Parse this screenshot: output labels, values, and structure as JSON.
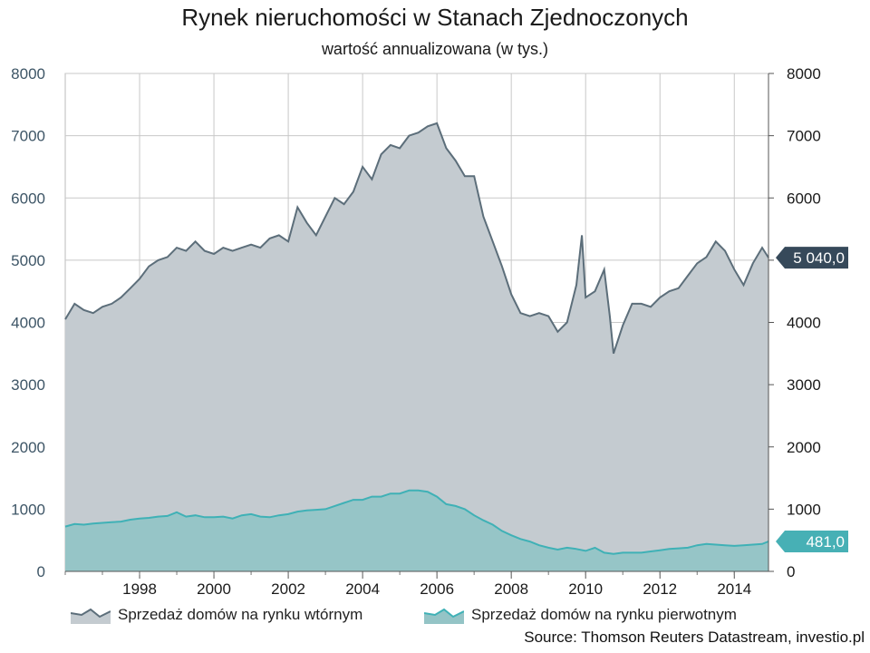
{
  "title": "Rynek nieruchomości w Stanach Zjednoczonych",
  "subtitle": "wartość annualizowana (w tys.)",
  "source": "Source: Thomson Reuters Datastream, investio.pl",
  "colors": {
    "existing_fill": "#c4cbd0",
    "existing_line": "#5c6e7a",
    "new_fill": "#94c4c6",
    "new_line": "#3fb1b6",
    "existing_badge": "#36495a",
    "new_badge": "#47b0b5",
    "grid": "#c8c8c8"
  },
  "chart_data": {
    "type": "area",
    "title": "Rynek nieruchomości w Stanach Zjednoczonych",
    "subtitle": "wartość annualizowana (w tys.)",
    "x_range": [
      1996.0,
      2014.92
    ],
    "x_ticks": [
      "1998",
      "2000",
      "2002",
      "2004",
      "2006",
      "2008",
      "2010",
      "2012",
      "2014"
    ],
    "ylim": [
      0,
      8000
    ],
    "y_ticks": [
      "0",
      "1000",
      "2000",
      "3000",
      "4000",
      "5000",
      "6000",
      "7000",
      "8000"
    ],
    "grid": true,
    "legend_position": "bottom",
    "series": [
      {
        "name": "Sprzedaż domów na rynku wtórnym",
        "last_value_label": "5 040,0",
        "x": [
          1996.0,
          1996.25,
          1996.5,
          1996.75,
          1997.0,
          1997.25,
          1997.5,
          1997.75,
          1998.0,
          1998.25,
          1998.5,
          1998.75,
          1999.0,
          1999.25,
          1999.5,
          1999.75,
          2000.0,
          2000.25,
          2000.5,
          2000.75,
          2001.0,
          2001.25,
          2001.5,
          2001.75,
          2002.0,
          2002.25,
          2002.5,
          2002.75,
          2003.0,
          2003.25,
          2003.5,
          2003.75,
          2004.0,
          2004.25,
          2004.5,
          2004.75,
          2005.0,
          2005.25,
          2005.5,
          2005.75,
          2006.0,
          2006.25,
          2006.5,
          2006.75,
          2007.0,
          2007.25,
          2007.5,
          2007.75,
          2008.0,
          2008.25,
          2008.5,
          2008.75,
          2009.0,
          2009.25,
          2009.5,
          2009.75,
          2009.9,
          2010.0,
          2010.25,
          2010.5,
          2010.65,
          2010.75,
          2011.0,
          2011.25,
          2011.5,
          2011.75,
          2012.0,
          2012.25,
          2012.5,
          2012.75,
          2013.0,
          2013.25,
          2013.5,
          2013.75,
          2014.0,
          2014.25,
          2014.5,
          2014.75,
          2014.92
        ],
        "values": [
          4050,
          4300,
          4200,
          4150,
          4250,
          4300,
          4400,
          4550,
          4700,
          4900,
          5000,
          5050,
          5200,
          5150,
          5300,
          5150,
          5100,
          5200,
          5150,
          5200,
          5250,
          5200,
          5350,
          5400,
          5300,
          5850,
          5600,
          5400,
          5700,
          6000,
          5900,
          6100,
          6500,
          6300,
          6700,
          6850,
          6800,
          7000,
          7050,
          7150,
          7200,
          6800,
          6600,
          6350,
          6350,
          5700,
          5300,
          4900,
          4450,
          4150,
          4100,
          4150,
          4100,
          3850,
          4000,
          4600,
          5400,
          4400,
          4500,
          4850,
          4100,
          3500,
          3950,
          4300,
          4300,
          4250,
          4400,
          4500,
          4550,
          4750,
          4950,
          5050,
          5300,
          5150,
          4850,
          4600,
          4950,
          5200,
          5040
        ]
      },
      {
        "name": "Sprzedaż domów na rynku pierwotnym",
        "last_value_label": "481,0",
        "x": [
          1996.0,
          1996.25,
          1996.5,
          1996.75,
          1997.0,
          1997.25,
          1997.5,
          1997.75,
          1998.0,
          1998.25,
          1998.5,
          1998.75,
          1999.0,
          1999.25,
          1999.5,
          1999.75,
          2000.0,
          2000.25,
          2000.5,
          2000.75,
          2001.0,
          2001.25,
          2001.5,
          2001.75,
          2002.0,
          2002.25,
          2002.5,
          2002.75,
          2003.0,
          2003.25,
          2003.5,
          2003.75,
          2004.0,
          2004.25,
          2004.5,
          2004.75,
          2005.0,
          2005.25,
          2005.5,
          2005.75,
          2006.0,
          2006.25,
          2006.5,
          2006.75,
          2007.0,
          2007.25,
          2007.5,
          2007.75,
          2008.0,
          2008.25,
          2008.5,
          2008.75,
          2009.0,
          2009.25,
          2009.5,
          2009.75,
          2010.0,
          2010.25,
          2010.5,
          2010.75,
          2011.0,
          2011.25,
          2011.5,
          2011.75,
          2012.0,
          2012.25,
          2012.5,
          2012.75,
          2013.0,
          2013.25,
          2013.5,
          2013.75,
          2014.0,
          2014.25,
          2014.5,
          2014.75,
          2014.92
        ],
        "values": [
          720,
          760,
          750,
          770,
          780,
          790,
          800,
          830,
          850,
          860,
          880,
          890,
          950,
          880,
          900,
          870,
          870,
          880,
          850,
          900,
          920,
          880,
          870,
          900,
          920,
          960,
          980,
          990,
          1000,
          1050,
          1100,
          1150,
          1150,
          1200,
          1200,
          1250,
          1250,
          1300,
          1300,
          1280,
          1200,
          1080,
          1050,
          1000,
          900,
          820,
          750,
          650,
          580,
          520,
          480,
          420,
          380,
          350,
          380,
          360,
          330,
          380,
          300,
          280,
          300,
          300,
          300,
          320,
          340,
          360,
          370,
          380,
          420,
          440,
          430,
          420,
          410,
          420,
          430,
          440,
          481
        ]
      }
    ]
  }
}
